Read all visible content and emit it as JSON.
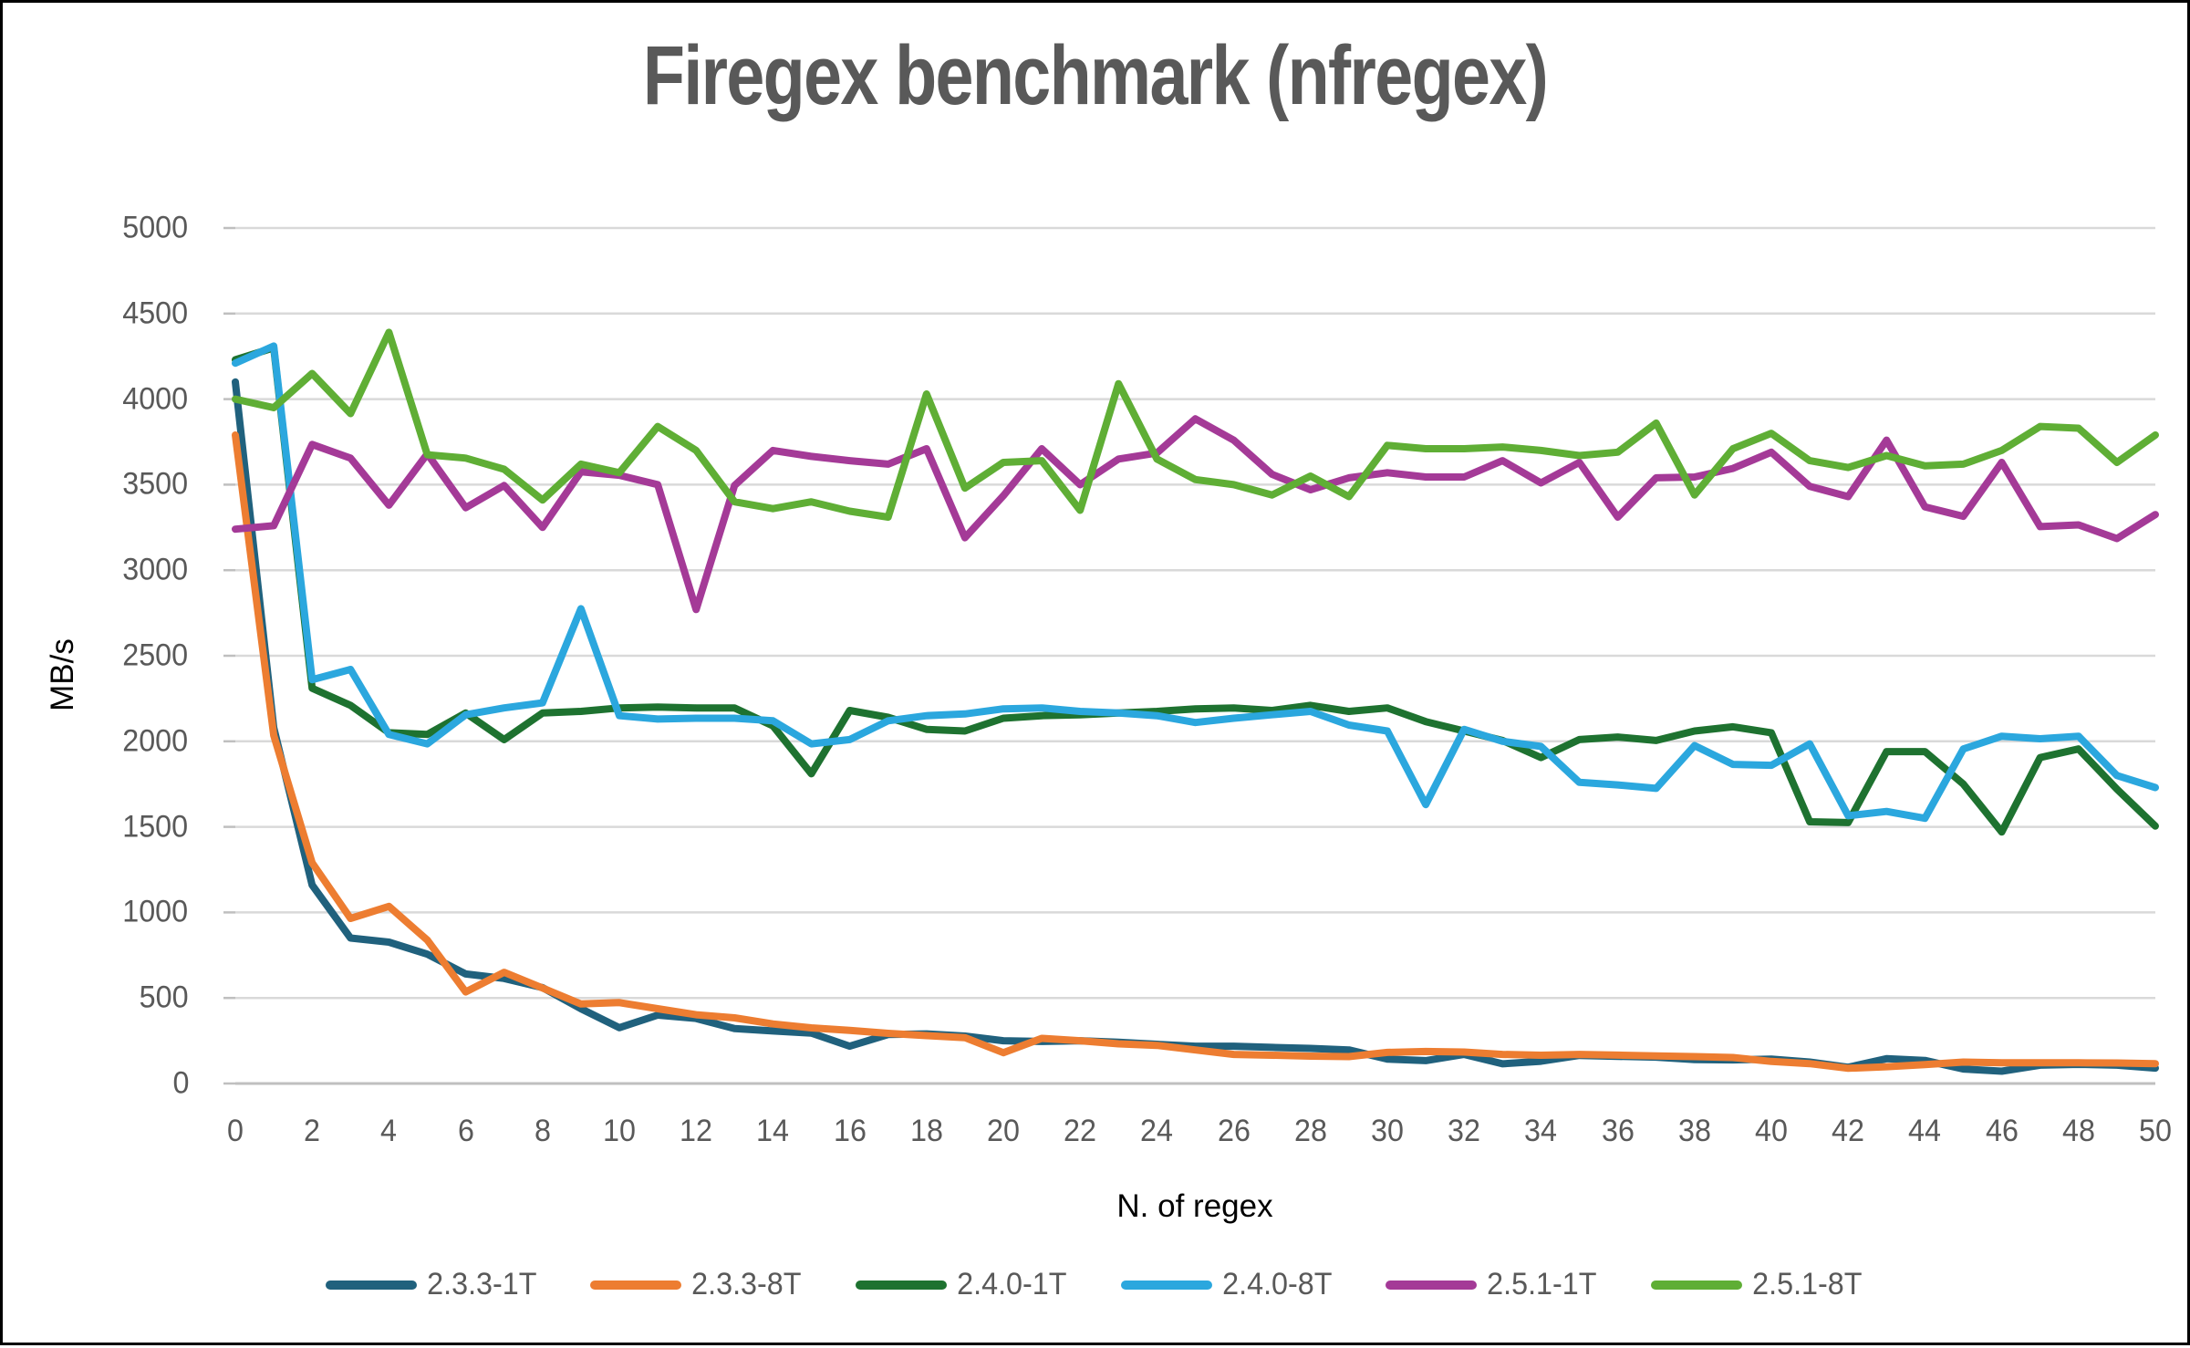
{
  "title": "Firegex benchmark (nfregex)",
  "chart_data": {
    "type": "line",
    "title": "Firegex benchmark (nfregex)",
    "xlabel": "N. of regex",
    "ylabel": "MB/s",
    "xlim": [
      0,
      50
    ],
    "ylim": [
      0,
      5000
    ],
    "x_ticks": [
      0,
      2,
      4,
      6,
      8,
      10,
      12,
      14,
      16,
      18,
      20,
      22,
      24,
      26,
      28,
      30,
      32,
      34,
      36,
      38,
      40,
      42,
      44,
      46,
      48,
      50
    ],
    "y_ticks": [
      0,
      500,
      1000,
      1500,
      2000,
      2500,
      3000,
      3500,
      4000,
      4500,
      5000
    ],
    "grid": "horizontal",
    "legend_position": "bottom",
    "grid_color": "#D9D9D9",
    "zero_line_color": "#BFBFBF",
    "x": [
      0,
      1,
      2,
      3,
      4,
      5,
      6,
      7,
      8,
      9,
      10,
      11,
      12,
      13,
      14,
      15,
      16,
      17,
      18,
      19,
      20,
      21,
      22,
      23,
      24,
      25,
      26,
      27,
      28,
      29,
      30,
      31,
      32,
      33,
      34,
      35,
      36,
      37,
      38,
      39,
      40,
      41,
      42,
      43,
      44,
      45,
      46,
      47,
      48,
      49,
      50
    ],
    "series": [
      {
        "name": "2.3.3-1T",
        "color": "#20617D",
        "values": [
          4100,
          2080,
          1160,
          850,
          826,
          756,
          640,
          614,
          560,
          437,
          326,
          400,
          380,
          321,
          307,
          295,
          218,
          286,
          290,
          277,
          250,
          246,
          250,
          241,
          229,
          218,
          218,
          211,
          205,
          196,
          143,
          134,
          170,
          115,
          130,
          164,
          159,
          154,
          140,
          138,
          143,
          125,
          95,
          145,
          135,
          85,
          72,
          107,
          112,
          107,
          90
        ]
      },
      {
        "name": "2.3.3-8T",
        "color": "#ED7D31",
        "values": [
          3790,
          2035,
          1290,
          965,
          1035,
          838,
          535,
          650,
          558,
          465,
          473,
          437,
          402,
          384,
          348,
          325,
          311,
          293,
          280,
          268,
          180,
          264,
          250,
          232,
          223,
          196,
          170,
          165,
          160,
          157,
          182,
          187,
          184,
          170,
          165,
          170,
          166,
          161,
          157,
          152,
          129,
          116,
          89,
          98,
          111,
          125,
          121,
          121,
          121,
          120,
          116
        ]
      },
      {
        "name": "2.4.0-1T",
        "color": "#1E7230",
        "values": [
          4230,
          4300,
          2310,
          2210,
          2050,
          2040,
          2165,
          2010,
          2165,
          2175,
          2195,
          2200,
          2195,
          2195,
          2090,
          1810,
          2180,
          2140,
          2070,
          2060,
          2135,
          2150,
          2155,
          2165,
          2175,
          2190,
          2195,
          2180,
          2210,
          2175,
          2195,
          2115,
          2060,
          2005,
          1905,
          2010,
          2025,
          2005,
          2060,
          2085,
          2050,
          1530,
          1525,
          1940,
          1940,
          1750,
          1470,
          1905,
          1955,
          1720,
          1505
        ]
      },
      {
        "name": "2.4.0-8T",
        "color": "#2BA7DE",
        "values": [
          4210,
          4310,
          2360,
          2420,
          2040,
          1985,
          2155,
          2195,
          2225,
          2775,
          2150,
          2130,
          2135,
          2135,
          2120,
          1985,
          2010,
          2120,
          2150,
          2160,
          2190,
          2195,
          2175,
          2165,
          2150,
          2110,
          2135,
          2155,
          2175,
          2095,
          2060,
          1630,
          2070,
          2000,
          1970,
          1760,
          1745,
          1725,
          1975,
          1865,
          1860,
          1985,
          1565,
          1590,
          1550,
          1955,
          2030,
          2015,
          2030,
          1800,
          1730
        ]
      },
      {
        "name": "2.5.1-1T",
        "color": "#A43A97",
        "values": [
          3240,
          3260,
          3735,
          3655,
          3380,
          3680,
          3365,
          3495,
          3250,
          3575,
          3555,
          3500,
          2770,
          3495,
          3700,
          3665,
          3640,
          3620,
          3710,
          3190,
          3435,
          3710,
          3500,
          3650,
          3685,
          3885,
          3760,
          3560,
          3470,
          3540,
          3570,
          3545,
          3545,
          3640,
          3510,
          3630,
          3310,
          3540,
          3545,
          3595,
          3690,
          3490,
          3430,
          3760,
          3370,
          3315,
          3630,
          3255,
          3265,
          3185,
          3325
        ]
      },
      {
        "name": "2.5.1-8T",
        "color": "#5FAE35",
        "values": [
          4000,
          3950,
          4150,
          3915,
          4390,
          3675,
          3655,
          3590,
          3410,
          3620,
          3570,
          3840,
          3700,
          3400,
          3360,
          3400,
          3345,
          3310,
          4030,
          3480,
          3630,
          3640,
          3350,
          4090,
          3650,
          3530,
          3500,
          3440,
          3550,
          3430,
          3730,
          3710,
          3710,
          3720,
          3700,
          3670,
          3690,
          3860,
          3440,
          3710,
          3800,
          3640,
          3600,
          3670,
          3610,
          3620,
          3700,
          3840,
          3830,
          3630,
          3790
        ]
      }
    ]
  }
}
